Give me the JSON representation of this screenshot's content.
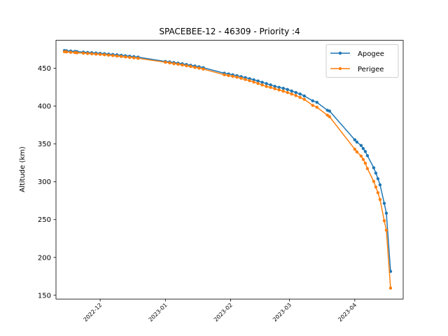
{
  "chart_data": {
    "type": "line",
    "title": "SPACEBEE-12 - 46309 - Priority :4",
    "xlabel": "",
    "ylabel": "Altitude (km)",
    "x_ticks": [
      "2022-12",
      "2023-01",
      "2023-02",
      "2023-03",
      "2023-04"
    ],
    "x_range": [
      "2022-11-10",
      "2023-04-24"
    ],
    "y_ticks": [
      150,
      200,
      250,
      300,
      350,
      400,
      450
    ],
    "ylim": [
      145,
      487
    ],
    "grid": false,
    "legend_position": "top-right",
    "series": [
      {
        "name": "Apogee",
        "color": "#1f77b4",
        "points": [
          {
            "x": "2022-11-14",
            "y": 473.5
          },
          {
            "x": "2022-11-15",
            "y": 473.2
          },
          {
            "x": "2022-11-17",
            "y": 472.8
          },
          {
            "x": "2022-11-19",
            "y": 472.3
          },
          {
            "x": "2022-11-20",
            "y": 472.0
          },
          {
            "x": "2022-11-23",
            "y": 471.4
          },
          {
            "x": "2022-11-25",
            "y": 471.0
          },
          {
            "x": "2022-11-27",
            "y": 470.6
          },
          {
            "x": "2022-11-29",
            "y": 470.2
          },
          {
            "x": "2022-12-01",
            "y": 469.8
          },
          {
            "x": "2022-12-03",
            "y": 469.3
          },
          {
            "x": "2022-12-05",
            "y": 468.8
          },
          {
            "x": "2022-12-07",
            "y": 468.3
          },
          {
            "x": "2022-12-09",
            "y": 467.8
          },
          {
            "x": "2022-12-11",
            "y": 467.2
          },
          {
            "x": "2022-12-13",
            "y": 466.6
          },
          {
            "x": "2022-12-15",
            "y": 466.0
          },
          {
            "x": "2022-12-17",
            "y": 465.4
          },
          {
            "x": "2022-12-19",
            "y": 464.8
          },
          {
            "x": "2023-01-01",
            "y": 459.0
          },
          {
            "x": "2023-01-03",
            "y": 458.4
          },
          {
            "x": "2023-01-05",
            "y": 457.6
          },
          {
            "x": "2023-01-07",
            "y": 456.8
          },
          {
            "x": "2023-01-09",
            "y": 456.0
          },
          {
            "x": "2023-01-11",
            "y": 455.0
          },
          {
            "x": "2023-01-13",
            "y": 454.0
          },
          {
            "x": "2023-01-15",
            "y": 453.0
          },
          {
            "x": "2023-01-17",
            "y": 452.0
          },
          {
            "x": "2023-01-19",
            "y": 450.8
          },
          {
            "x": "2023-01-29",
            "y": 443.5
          },
          {
            "x": "2023-01-31",
            "y": 442.5
          },
          {
            "x": "2023-02-02",
            "y": 441.4
          },
          {
            "x": "2023-02-04",
            "y": 440.2
          },
          {
            "x": "2023-02-06",
            "y": 439.0
          },
          {
            "x": "2023-02-08",
            "y": 437.7
          },
          {
            "x": "2023-02-10",
            "y": 436.3
          },
          {
            "x": "2023-02-12",
            "y": 434.8
          },
          {
            "x": "2023-02-14",
            "y": 433.2
          },
          {
            "x": "2023-02-16",
            "y": 431.5
          },
          {
            "x": "2023-02-18",
            "y": 429.8
          },
          {
            "x": "2023-02-20",
            "y": 428.0
          },
          {
            "x": "2023-02-22",
            "y": 426.2
          },
          {
            "x": "2023-02-24",
            "y": 424.8
          },
          {
            "x": "2023-02-26",
            "y": 423.6
          },
          {
            "x": "2023-02-28",
            "y": 422.0
          },
          {
            "x": "2023-03-02",
            "y": 420.0
          },
          {
            "x": "2023-03-04",
            "y": 418.0
          },
          {
            "x": "2023-03-06",
            "y": 416.0
          },
          {
            "x": "2023-03-08",
            "y": 413.5
          },
          {
            "x": "2023-03-12",
            "y": 407.0
          },
          {
            "x": "2023-03-14",
            "y": 405.0
          },
          {
            "x": "2023-03-19",
            "y": 394.5
          },
          {
            "x": "2023-03-20",
            "y": 393.5
          },
          {
            "x": "2023-04-01",
            "y": 355.5
          },
          {
            "x": "2023-04-02",
            "y": 352.5
          },
          {
            "x": "2023-04-04",
            "y": 348.0
          },
          {
            "x": "2023-04-05",
            "y": 344.0
          },
          {
            "x": "2023-04-06",
            "y": 340.0
          },
          {
            "x": "2023-04-07",
            "y": 334.5
          },
          {
            "x": "2023-04-10",
            "y": 318.5
          },
          {
            "x": "2023-04-11",
            "y": 311.5
          },
          {
            "x": "2023-04-12",
            "y": 304.0
          },
          {
            "x": "2023-04-13",
            "y": 296.0
          },
          {
            "x": "2023-04-15",
            "y": 271.5
          },
          {
            "x": "2023-04-16",
            "y": 258.5
          },
          {
            "x": "2023-04-18",
            "y": 181.5
          }
        ]
      },
      {
        "name": "Perigee",
        "color": "#ff7f0e",
        "points": [
          {
            "x": "2022-11-14",
            "y": 472.0
          },
          {
            "x": "2022-11-15",
            "y": 471.6
          },
          {
            "x": "2022-11-17",
            "y": 471.2
          },
          {
            "x": "2022-11-19",
            "y": 470.8
          },
          {
            "x": "2022-11-20",
            "y": 470.5
          },
          {
            "x": "2022-11-23",
            "y": 470.0
          },
          {
            "x": "2022-11-25",
            "y": 469.6
          },
          {
            "x": "2022-11-27",
            "y": 469.2
          },
          {
            "x": "2022-11-29",
            "y": 468.8
          },
          {
            "x": "2022-12-01",
            "y": 468.4
          },
          {
            "x": "2022-12-03",
            "y": 467.9
          },
          {
            "x": "2022-12-05",
            "y": 467.4
          },
          {
            "x": "2022-12-07",
            "y": 466.8
          },
          {
            "x": "2022-12-09",
            "y": 466.2
          },
          {
            "x": "2022-12-11",
            "y": 465.6
          },
          {
            "x": "2022-12-13",
            "y": 465.0
          },
          {
            "x": "2022-12-15",
            "y": 464.4
          },
          {
            "x": "2022-12-17",
            "y": 463.8
          },
          {
            "x": "2022-12-19",
            "y": 463.2
          },
          {
            "x": "2023-01-01",
            "y": 458.0
          },
          {
            "x": "2023-01-03",
            "y": 457.2
          },
          {
            "x": "2023-01-05",
            "y": 456.2
          },
          {
            "x": "2023-01-07",
            "y": 455.4
          },
          {
            "x": "2023-01-09",
            "y": 454.4
          },
          {
            "x": "2023-01-11",
            "y": 453.4
          },
          {
            "x": "2023-01-13",
            "y": 452.4
          },
          {
            "x": "2023-01-15",
            "y": 451.2
          },
          {
            "x": "2023-01-17",
            "y": 450.2
          },
          {
            "x": "2023-01-19",
            "y": 449.0
          },
          {
            "x": "2023-01-29",
            "y": 441.5
          },
          {
            "x": "2023-01-31",
            "y": 440.4
          },
          {
            "x": "2023-02-02",
            "y": 439.4
          },
          {
            "x": "2023-02-04",
            "y": 438.2
          },
          {
            "x": "2023-02-06",
            "y": 436.8
          },
          {
            "x": "2023-02-08",
            "y": 435.2
          },
          {
            "x": "2023-02-10",
            "y": 433.6
          },
          {
            "x": "2023-02-12",
            "y": 431.8
          },
          {
            "x": "2023-02-14",
            "y": 430.0
          },
          {
            "x": "2023-02-16",
            "y": 428.0
          },
          {
            "x": "2023-02-18",
            "y": 426.0
          },
          {
            "x": "2023-02-20",
            "y": 424.8
          },
          {
            "x": "2023-02-22",
            "y": 423.0
          },
          {
            "x": "2023-02-24",
            "y": 421.4
          },
          {
            "x": "2023-02-26",
            "y": 419.8
          },
          {
            "x": "2023-02-28",
            "y": 418.0
          },
          {
            "x": "2023-03-02",
            "y": 416.0
          },
          {
            "x": "2023-03-04",
            "y": 414.0
          },
          {
            "x": "2023-03-06",
            "y": 411.5
          },
          {
            "x": "2023-03-08",
            "y": 409.0
          },
          {
            "x": "2023-03-12",
            "y": 401.0
          },
          {
            "x": "2023-03-14",
            "y": 398.5
          },
          {
            "x": "2023-03-19",
            "y": 388.0
          },
          {
            "x": "2023-03-20",
            "y": 386.0
          },
          {
            "x": "2023-04-01",
            "y": 343.0
          },
          {
            "x": "2023-04-02",
            "y": 339.5
          },
          {
            "x": "2023-04-04",
            "y": 334.0
          },
          {
            "x": "2023-04-05",
            "y": 329.5
          },
          {
            "x": "2023-04-06",
            "y": 324.5
          },
          {
            "x": "2023-04-07",
            "y": 317.5
          },
          {
            "x": "2023-04-10",
            "y": 300.5
          },
          {
            "x": "2023-04-11",
            "y": 293.0
          },
          {
            "x": "2023-04-12",
            "y": 285.5
          },
          {
            "x": "2023-04-13",
            "y": 276.5
          },
          {
            "x": "2023-04-15",
            "y": 248.5
          },
          {
            "x": "2023-04-16",
            "y": 236.0
          },
          {
            "x": "2023-04-18",
            "y": 159.5
          }
        ]
      }
    ]
  }
}
